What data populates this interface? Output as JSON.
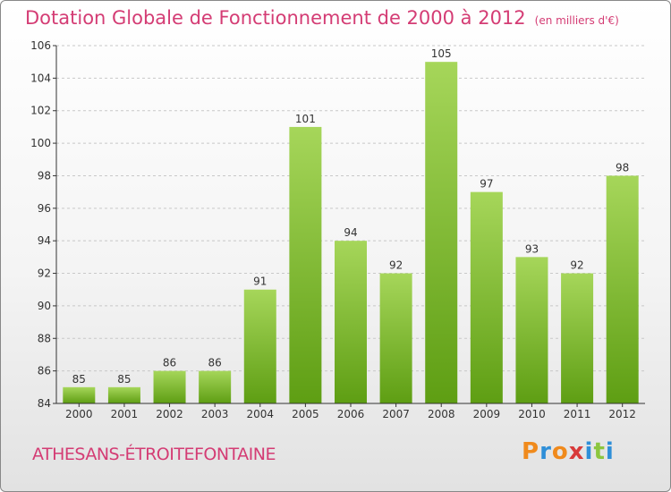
{
  "title": "Dotation Globale de Fonctionnement de 2000 à 2012",
  "subtitle": "(en milliers d'€)",
  "commune": "ATHESANS-ÉTROITEFONTAINE",
  "logo": {
    "letters": [
      "P",
      "r",
      "o",
      "x",
      "i",
      "t",
      "i"
    ],
    "colors": [
      "#f08a1c",
      "#2f8fd8",
      "#f08a1c",
      "#d83a3a",
      "#2f8fd8",
      "#8cc63f",
      "#2f8fd8"
    ]
  },
  "colors": {
    "title": "#d43c74",
    "bar_light": "#a6d65a",
    "bar_dark": "#5e9e13",
    "grid": "#c8c8c8",
    "axis": "#333333"
  },
  "chart_data": {
    "type": "bar",
    "categories": [
      "2000",
      "2001",
      "2002",
      "2003",
      "2004",
      "2005",
      "2006",
      "2007",
      "2008",
      "2009",
      "2010",
      "2011",
      "2012"
    ],
    "values": [
      85,
      85,
      86,
      86,
      91,
      101,
      94,
      92,
      105,
      97,
      93,
      92,
      98
    ],
    "ylim": [
      84,
      106
    ],
    "yticks": [
      84,
      86,
      88,
      90,
      92,
      94,
      96,
      98,
      100,
      102,
      104,
      106
    ],
    "grid": "horizontal dashed",
    "data_labels": true
  }
}
